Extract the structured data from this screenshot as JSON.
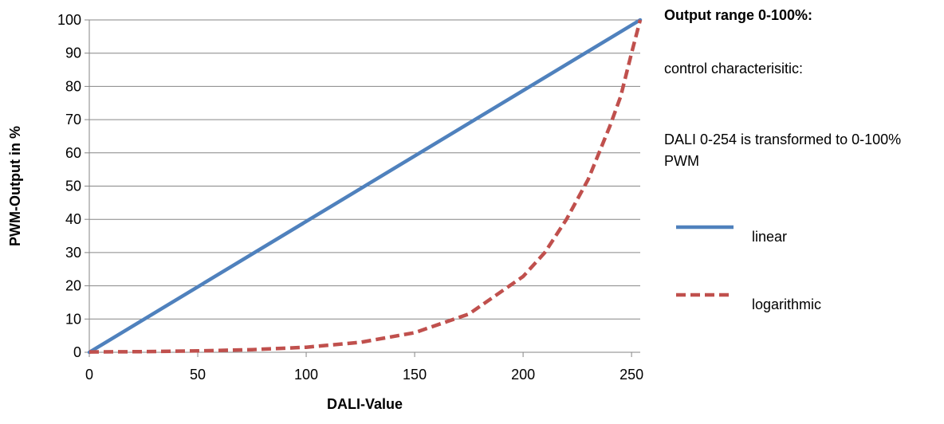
{
  "notes": {
    "title": "Output range 0-100%:",
    "line1": "control characterisitic:",
    "line2": "DALI 0-254 is transformed to 0-100% PWM"
  },
  "chart_data": {
    "type": "line",
    "xlabel": "DALI-Value",
    "ylabel": "PWM-Output in %",
    "xlim": [
      0,
      254
    ],
    "ylim": [
      0,
      100
    ],
    "xticks": [
      0,
      50,
      100,
      150,
      200,
      250
    ],
    "yticks": [
      0,
      10,
      20,
      30,
      40,
      50,
      60,
      70,
      80,
      90,
      100
    ],
    "grid": "horizontal",
    "legend_position": "right",
    "series": [
      {
        "name": "linear",
        "color": "#4F81BD",
        "style": "solid",
        "x": [
          0,
          254
        ],
        "y": [
          0,
          100
        ]
      },
      {
        "name": "logarithmic",
        "color": "#C0504D",
        "style": "dashed",
        "x": [
          0,
          25,
          50,
          75,
          100,
          125,
          150,
          175,
          200,
          210,
          220,
          230,
          240,
          245,
          250,
          254
        ],
        "y": [
          0.1,
          0.2,
          0.4,
          0.8,
          1.5,
          3.0,
          5.9,
          11.5,
          22.8,
          30.0,
          40.0,
          52.0,
          68.0,
          77.0,
          90.0,
          100.0
        ]
      }
    ]
  }
}
